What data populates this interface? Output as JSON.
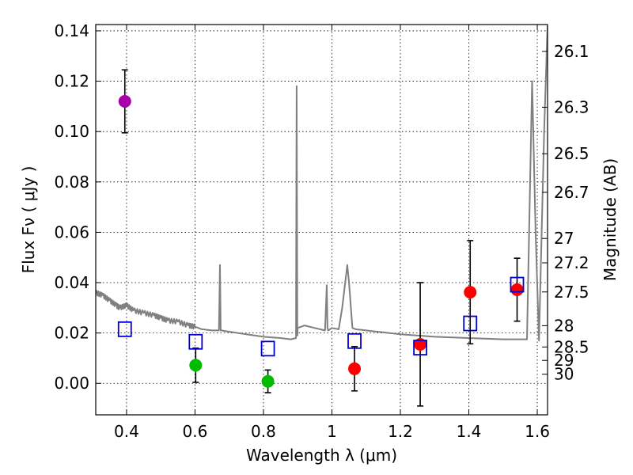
{
  "chart_data": {
    "type": "scatter",
    "xlabel": "Wavelength  λ (μm)",
    "ylabel": "Flux  Fν  ( μJy )",
    "y2label": "Magnitude (AB)",
    "xlim": [
      0.31,
      1.63
    ],
    "ylim": [
      -0.0125,
      0.1425
    ],
    "grid": true,
    "x_ticks": [
      0.4,
      0.6,
      0.8,
      1.0,
      1.2,
      1.4,
      1.6
    ],
    "x_tick_labels": [
      "0.4",
      "0.6",
      "0.8",
      "1",
      "1.2",
      "1.4",
      "1.6"
    ],
    "y_ticks": [
      0.0,
      0.02,
      0.04,
      0.06,
      0.08,
      0.1,
      0.12,
      0.14
    ],
    "y_tick_labels": [
      "0.00",
      "0.02",
      "0.04",
      "0.06",
      "0.08",
      "0.10",
      "0.12",
      "0.14"
    ],
    "mag_ticks": [
      26.1,
      26.3,
      26.5,
      26.7,
      27,
      27.2,
      27.5,
      28,
      28.5,
      29,
      30
    ],
    "mag_tick_labels": [
      "26.1",
      "26.3",
      "26.5",
      "26.7",
      "27",
      "27.2",
      "27.5",
      "28",
      "28.5",
      "29",
      "30"
    ],
    "series": [
      {
        "name": "observed-purple",
        "color": "#aa00aa",
        "x": [
          0.395
        ],
        "y": [
          0.112
        ],
        "yerr": [
          0.0125
        ]
      },
      {
        "name": "observed-green",
        "color": "#00bb00",
        "x": [
          0.602,
          0.813
        ],
        "y": [
          0.0072,
          0.0008
        ],
        "yerr": [
          0.0068,
          0.0045
        ]
      },
      {
        "name": "observed-red",
        "color": "#ff0000",
        "x": [
          1.066,
          1.258,
          1.404,
          1.541
        ],
        "y": [
          0.0058,
          0.0155,
          0.0362,
          0.0372
        ],
        "yerr": [
          0.0088,
          0.0245,
          0.0205,
          0.0125
        ]
      },
      {
        "name": "model-photometry",
        "color": "#0000cc",
        "marker": "open-square",
        "x": [
          0.395,
          0.602,
          0.813,
          1.066,
          1.258,
          1.404,
          1.541
        ],
        "y": [
          0.0215,
          0.0165,
          0.0138,
          0.0168,
          0.0142,
          0.0238,
          0.0392
        ]
      },
      {
        "name": "model-spectrum",
        "color": "#808080",
        "type": "line",
        "x": [
          0.31,
          0.33,
          0.35,
          0.37,
          0.38,
          0.4,
          0.42,
          0.45,
          0.48,
          0.5,
          0.52,
          0.55,
          0.58,
          0.6,
          0.62,
          0.65,
          0.67,
          0.673,
          0.675,
          0.677,
          0.7,
          0.75,
          0.8,
          0.85,
          0.88,
          0.895,
          0.897,
          0.899,
          0.9,
          0.92,
          0.95,
          0.98,
          0.985,
          0.987,
          0.989,
          1.0,
          1.02,
          1.03,
          1.045,
          1.05,
          1.06,
          1.07,
          1.1,
          1.2,
          1.3,
          1.4,
          1.5,
          1.55,
          1.57,
          1.585,
          1.595,
          1.605,
          1.62,
          1.63
        ],
        "y": [
          0.036,
          0.035,
          0.033,
          0.031,
          0.03,
          0.031,
          0.029,
          0.028,
          0.027,
          0.026,
          0.025,
          0.0245,
          0.023,
          0.0225,
          0.0215,
          0.021,
          0.021,
          0.047,
          0.021,
          0.021,
          0.0205,
          0.0195,
          0.0185,
          0.018,
          0.0175,
          0.018,
          0.118,
          0.019,
          0.022,
          0.023,
          0.022,
          0.021,
          0.039,
          0.022,
          0.021,
          0.022,
          0.0215,
          0.03,
          0.047,
          0.04,
          0.022,
          0.0215,
          0.021,
          0.0195,
          0.0185,
          0.018,
          0.0175,
          0.0175,
          0.0175,
          0.12,
          0.06,
          0.017,
          0.1,
          0.142
        ]
      }
    ]
  }
}
